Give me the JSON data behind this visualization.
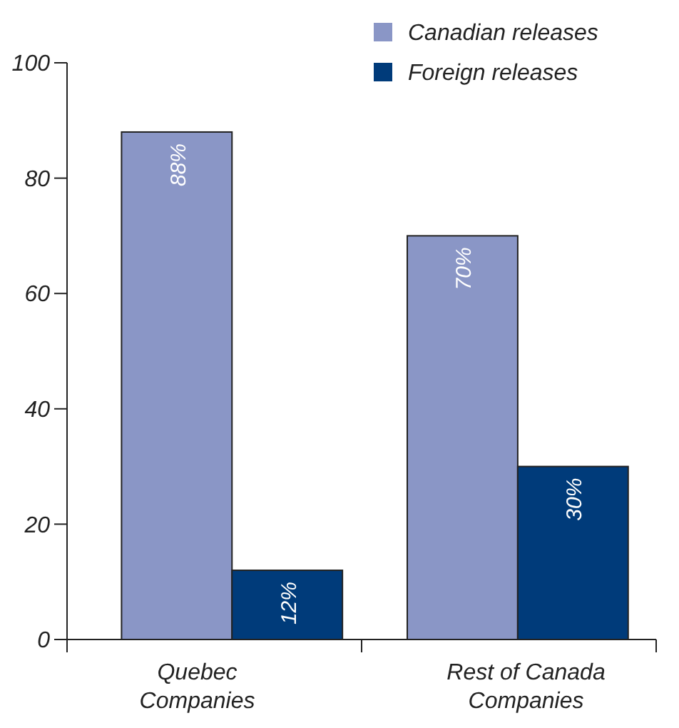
{
  "chart_data": {
    "type": "bar",
    "categories": [
      "Quebec Companies",
      "Rest of Canada Companies"
    ],
    "series": [
      {
        "name": "Canadian releases",
        "color": "#8a96c6",
        "values": [
          88,
          70
        ],
        "value_labels": [
          "88%",
          "70%"
        ]
      },
      {
        "name": "Foreign releases",
        "color": "#003b7a",
        "values": [
          12,
          30
        ],
        "value_labels": [
          "12%",
          "30%"
        ]
      }
    ],
    "ylim": [
      0,
      100
    ],
    "yticks": [
      0,
      20,
      40,
      60,
      80,
      100
    ],
    "grid": false,
    "legend": "top right"
  }
}
